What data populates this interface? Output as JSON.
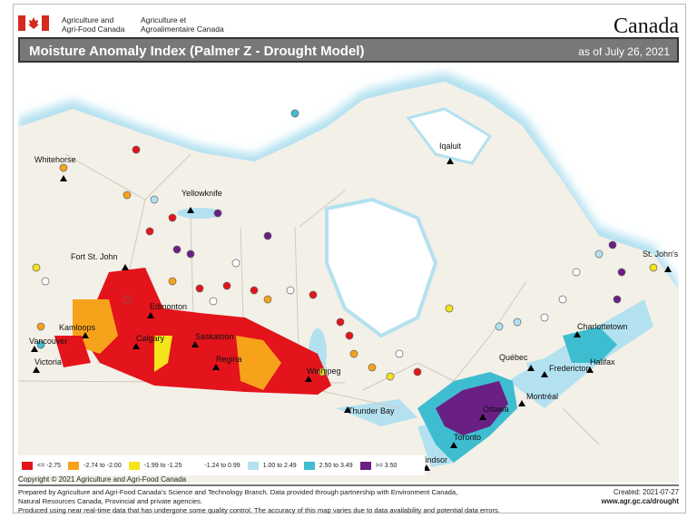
{
  "header": {
    "dept_en": [
      "Agriculture and",
      "Agri-Food Canada"
    ],
    "dept_fr": [
      "Agriculture et",
      "Agroalimentaire Canada"
    ],
    "wordmark": "Canada",
    "title": "Moisture Anomaly Index (Palmer Z - Drought Model)",
    "date": "as of July 26, 2021"
  },
  "legend": [
    {
      "label": "<= -2.75",
      "color": "#e3141b"
    },
    {
      "label": "-2.74 to -2.00",
      "color": "#f7a21b"
    },
    {
      "label": "-1.99 to -1.25",
      "color": "#f4e41a"
    },
    {
      "label": "-1.24 to 0.99",
      "color": "#ffffff"
    },
    {
      "label": "1.00 to 2.49",
      "color": "#b3e1f0"
    },
    {
      "label": "2.50 to 3.49",
      "color": "#3fbdd0"
    },
    {
      "label": ">= 3.50",
      "color": "#6a1f84"
    }
  ],
  "cities": [
    "Whitehorse",
    "Yellowknife",
    "Iqaluit",
    "Fort St. John",
    "Edmonton",
    "Kamloops",
    "Calgary",
    "Saskatoon",
    "Vancouver",
    "Victoria",
    "Regina",
    "Winnipeg",
    "Thunder Bay",
    "St. John's",
    "Charlottetown",
    "Québec",
    "Fredericton",
    "Halifax",
    "Montréal",
    "Ottawa",
    "Toronto",
    "Windsor"
  ],
  "copyright": "Copyright © 2021 Agriculture and Agri-Food Canada",
  "footer": {
    "lines": [
      "Prepared by Agriculture and Agri-Food Canada's Science and Technology Branch. Data provided through partnership with Environment Canada,",
      "Natural Resources Canada, Provincial and private agencies.",
      "Produced using near real-time data that has undergone some quality control. The accuracy of this map varies due to data availability and potential data errors."
    ],
    "created": "Created: 2021-07-27",
    "url": "www.agr.gc.ca/drought"
  }
}
